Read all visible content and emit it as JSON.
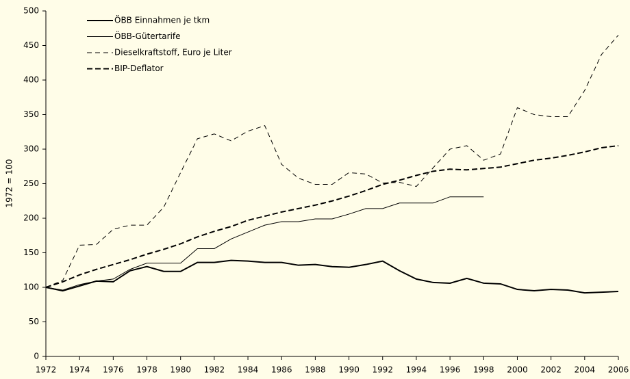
{
  "chart_data": {
    "type": "line",
    "y_label": "1972 = 100",
    "x": [
      1972,
      1973,
      1974,
      1975,
      1976,
      1977,
      1978,
      1979,
      1980,
      1981,
      1982,
      1983,
      1984,
      1985,
      1986,
      1987,
      1988,
      1989,
      1990,
      1991,
      1992,
      1993,
      1994,
      1995,
      1996,
      1997,
      1998,
      1999,
      2000,
      2001,
      2002,
      2003,
      2004,
      2005,
      2006
    ],
    "series": [
      {
        "name": "ÖBB Einnahmen je tkm",
        "color": "#000000",
        "dashed": false,
        "width": 2,
        "values": [
          100,
          95,
          102,
          109,
          108,
          124,
          130,
          123,
          123,
          136,
          136,
          139,
          138,
          136,
          136,
          132,
          133,
          130,
          129,
          133,
          138,
          124,
          112,
          107,
          106,
          113,
          106,
          105,
          97,
          95,
          97,
          96,
          92,
          93,
          94
        ]
      },
      {
        "name": "ÖBB-Gütertarife",
        "color": "#000000",
        "dashed": false,
        "width": 1,
        "values": [
          100,
          96,
          104,
          109,
          112,
          126,
          135,
          135,
          135,
          156,
          156,
          170,
          180,
          190,
          195,
          195,
          199,
          199,
          206,
          214,
          214,
          222,
          222,
          222,
          231,
          231,
          231,
          null,
          null,
          null,
          null,
          null,
          null,
          null,
          null
        ]
      },
      {
        "name": "Dieselkraftstoff, Euro je Liter",
        "color": "#000000",
        "dashed": true,
        "width": 1,
        "values": [
          100,
          110,
          161,
          162,
          184,
          190,
          190,
          216,
          266,
          315,
          322,
          312,
          326,
          334,
          278,
          258,
          249,
          249,
          266,
          264,
          251,
          252,
          246,
          273,
          300,
          305,
          284,
          293,
          360,
          350,
          347,
          347,
          385,
          437,
          465
        ]
      },
      {
        "name": "BIP-Deflator",
        "color": "#000000",
        "dashed": true,
        "width": 2,
        "values": [
          100,
          108,
          118,
          126,
          133,
          140,
          148,
          155,
          163,
          173,
          181,
          188,
          197,
          203,
          209,
          214,
          219,
          225,
          232,
          240,
          249,
          255,
          262,
          268,
          271,
          270,
          272,
          274,
          279,
          284,
          287,
          291,
          296,
          302,
          305
        ]
      }
    ],
    "xlim": [
      1972,
      2006
    ],
    "xticks": [
      1972,
      1974,
      1976,
      1978,
      1980,
      1982,
      1984,
      1986,
      1988,
      1990,
      1992,
      1994,
      1996,
      1998,
      2000,
      2002,
      2004,
      2006
    ],
    "ylim": [
      0,
      500
    ],
    "yticks": [
      0,
      50,
      100,
      150,
      200,
      250,
      300,
      350,
      400,
      450,
      500
    ],
    "legend": "upper left"
  }
}
